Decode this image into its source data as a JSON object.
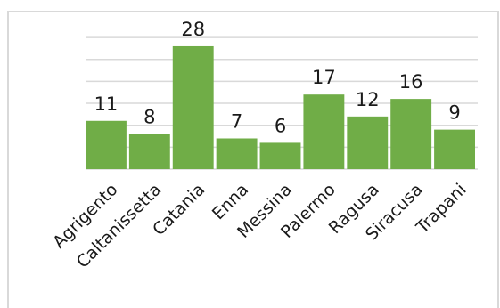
{
  "chart_data": {
    "type": "bar",
    "title": "",
    "xlabel": "",
    "ylabel": "",
    "categories": [
      "Agrigento",
      "Caltanissetta",
      "Catania",
      "Enna",
      "Messina",
      "Palermo",
      "Ragusa",
      "Siracusa",
      "Trapani"
    ],
    "values": [
      11,
      8,
      28,
      7,
      6,
      17,
      12,
      16,
      9
    ],
    "ylim": [
      0,
      30
    ],
    "y_gridlines": [
      5,
      10,
      15,
      20,
      25,
      30
    ],
    "grid": true,
    "show_y_axis_labels": false,
    "data_labels": true,
    "legend": "none",
    "bar_color": "#70ad47",
    "gridline_color": "#d9d9d9"
  }
}
